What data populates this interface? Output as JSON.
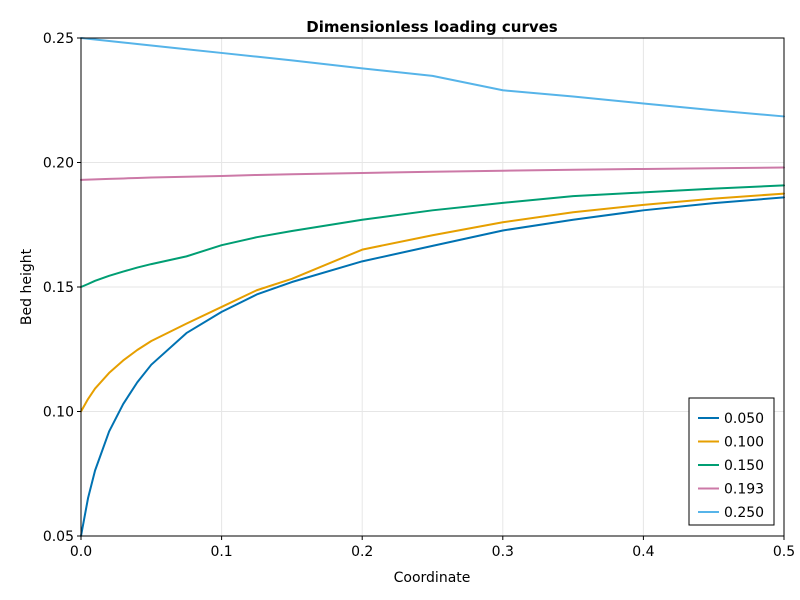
{
  "chart_data": {
    "type": "line",
    "title": "Dimensionless loading curves",
    "xlabel": "Coordinate",
    "ylabel": "Bed height",
    "xlim": [
      0,
      0.5
    ],
    "ylim": [
      0.05,
      0.25
    ],
    "xticks": [
      "0.0",
      "0.1",
      "0.2",
      "0.3",
      "0.4",
      "0.5"
    ],
    "yticks": [
      "0.05",
      "0.10",
      "0.15",
      "0.20",
      "0.25"
    ],
    "grid": true,
    "legend_position": "bottom-right",
    "x": [
      0.0,
      0.005,
      0.01,
      0.02,
      0.03,
      0.04,
      0.05,
      0.075,
      0.1,
      0.125,
      0.15,
      0.2,
      0.25,
      0.3,
      0.35,
      0.4,
      0.45,
      0.5
    ],
    "series": [
      {
        "name": "0.050",
        "color": "#0072b2",
        "values": [
          0.05,
          0.0652,
          0.0763,
          0.092,
          0.103,
          0.1117,
          0.1188,
          0.1315,
          0.14,
          0.147,
          0.152,
          0.1603,
          0.1665,
          0.1727,
          0.177,
          0.1808,
          0.1837,
          0.186
        ]
      },
      {
        "name": "0.100",
        "color": "#e69f00",
        "values": [
          0.1,
          0.105,
          0.1092,
          0.1155,
          0.1205,
          0.1247,
          0.1283,
          0.1353,
          0.142,
          0.1487,
          0.1533,
          0.165,
          0.1708,
          0.176,
          0.18,
          0.183,
          0.1855,
          0.1875
        ]
      },
      {
        "name": "0.150",
        "color": "#009e73",
        "values": [
          0.15,
          0.1512,
          0.1525,
          0.1545,
          0.1562,
          0.1578,
          0.1592,
          0.1623,
          0.1668,
          0.17,
          0.1725,
          0.177,
          0.1808,
          0.1838,
          0.1865,
          0.188,
          0.1895,
          0.1908
        ]
      },
      {
        "name": "0.193",
        "color": "#cc79a7",
        "values": [
          0.193,
          0.1931,
          0.1932,
          0.1934,
          0.1936,
          0.1938,
          0.194,
          0.1943,
          0.1946,
          0.195,
          0.1953,
          0.1958,
          0.1963,
          0.1967,
          0.1971,
          0.1974,
          0.1977,
          0.198
        ]
      },
      {
        "name": "0.250",
        "color": "#56b4e9",
        "values": [
          0.25,
          0.2497,
          0.2494,
          0.2488,
          0.2482,
          0.2476,
          0.247,
          0.2455,
          0.244,
          0.2425,
          0.241,
          0.2378,
          0.2348,
          0.229,
          0.2265,
          0.2237,
          0.221,
          0.2185
        ]
      }
    ]
  }
}
